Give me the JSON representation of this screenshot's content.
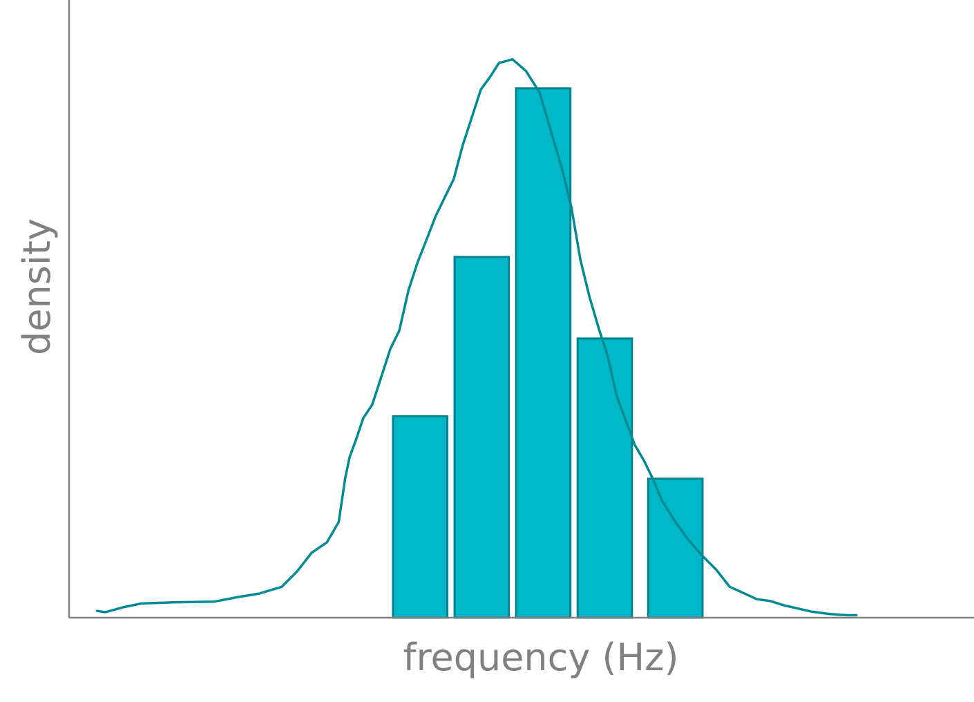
{
  "chart_data": {
    "type": "bar",
    "xlabel": "frequency (Hz)",
    "ylabel": "density",
    "ylim": [
      0,
      1
    ],
    "grid": false,
    "legend": "none",
    "bars": [
      {
        "x0": 0.358,
        "x1": 0.418,
        "value": 0.326
      },
      {
        "x0": 0.426,
        "x1": 0.486,
        "value": 0.584
      },
      {
        "x0": 0.494,
        "x1": 0.554,
        "value": 0.857
      },
      {
        "x0": 0.562,
        "x1": 0.622,
        "value": 0.452
      },
      {
        "x0": 0.64,
        "x1": 0.7,
        "value": 0.225
      }
    ],
    "density_curve": {
      "x": [
        0.031,
        0.04,
        0.06,
        0.08,
        0.12,
        0.16,
        0.185,
        0.21,
        0.235,
        0.252,
        0.268,
        0.285,
        0.298,
        0.305,
        0.31,
        0.318,
        0.325,
        0.335,
        0.345,
        0.355,
        0.365,
        0.375,
        0.385,
        0.395,
        0.405,
        0.415,
        0.425,
        0.435,
        0.445,
        0.455,
        0.465,
        0.475,
        0.49,
        0.505,
        0.52,
        0.535,
        0.545,
        0.555,
        0.565,
        0.575,
        0.585,
        0.595,
        0.605,
        0.615,
        0.625,
        0.635,
        0.645,
        0.655,
        0.67,
        0.685,
        0.7,
        0.715,
        0.73,
        0.745,
        0.76,
        0.775,
        0.79,
        0.805,
        0.82,
        0.84,
        0.86,
        0.87
      ],
      "y": [
        0.011,
        0.009,
        0.017,
        0.023,
        0.025,
        0.026,
        0.033,
        0.039,
        0.05,
        0.075,
        0.105,
        0.122,
        0.155,
        0.225,
        0.26,
        0.292,
        0.323,
        0.345,
        0.39,
        0.435,
        0.465,
        0.53,
        0.575,
        0.612,
        0.65,
        0.68,
        0.71,
        0.765,
        0.81,
        0.855,
        0.875,
        0.898,
        0.904,
        0.885,
        0.85,
        0.775,
        0.725,
        0.665,
        0.58,
        0.52,
        0.47,
        0.425,
        0.36,
        0.32,
        0.28,
        0.255,
        0.225,
        0.19,
        0.155,
        0.125,
        0.1,
        0.078,
        0.05,
        0.04,
        0.03,
        0.027,
        0.02,
        0.015,
        0.01,
        0.006,
        0.004,
        0.004
      ]
    },
    "xlim": [
      0,
      1
    ]
  },
  "colors": {
    "bar_fill": "#00b8c8",
    "bar_edge": "#00838f",
    "curve": "#008a94",
    "axis": "#808080",
    "text": "#808080",
    "background": "#ffffff"
  }
}
